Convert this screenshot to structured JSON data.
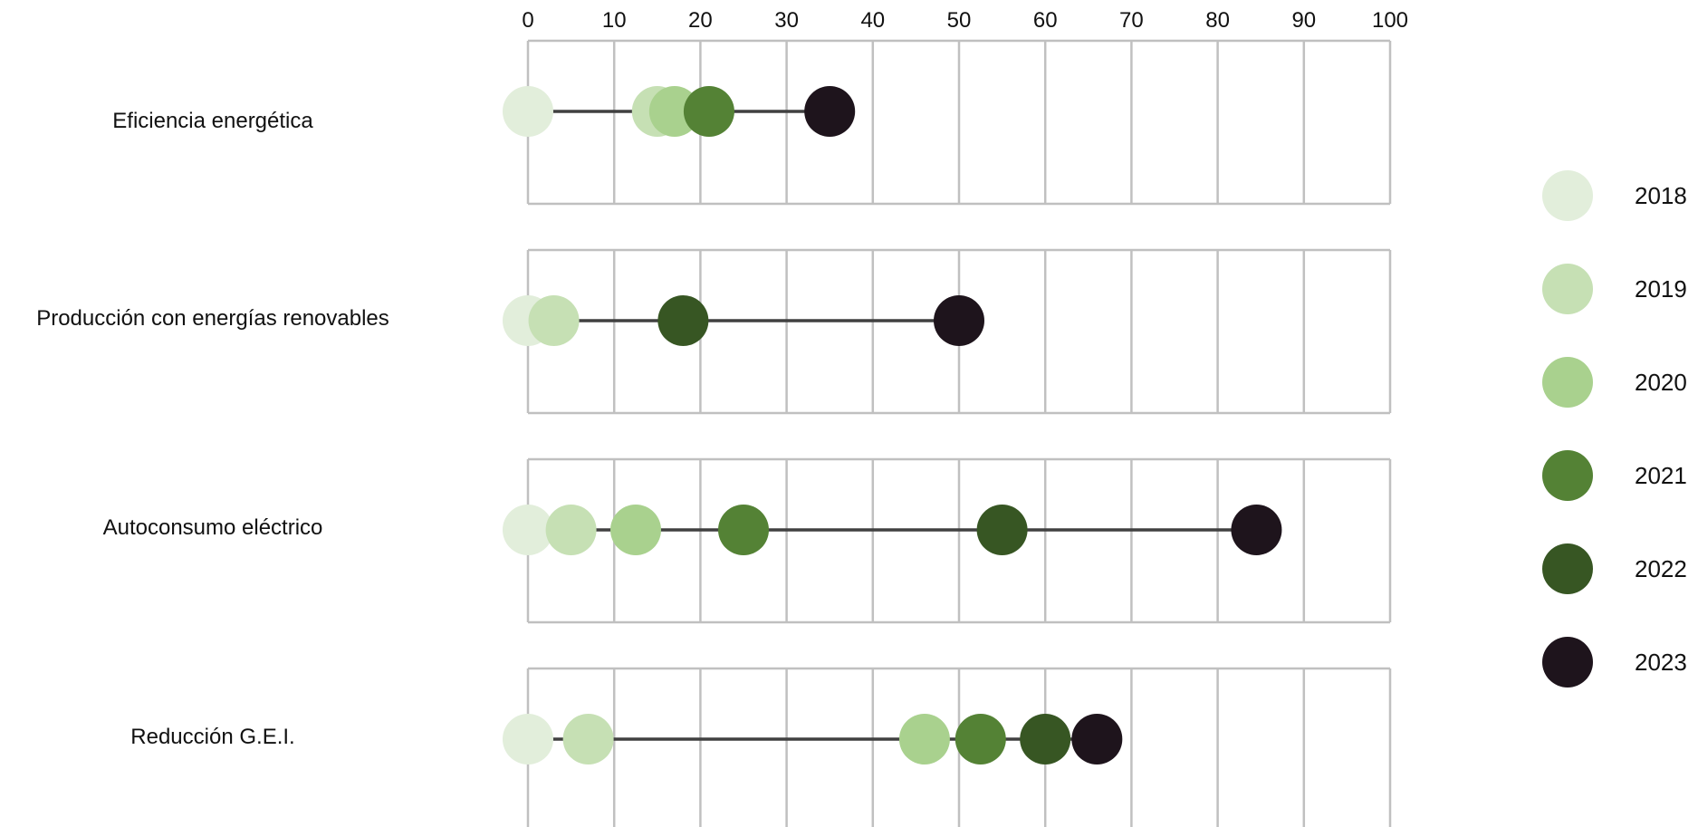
{
  "chart_data": {
    "type": "scatter",
    "subtype": "dot-plot",
    "xlim": [
      0,
      100
    ],
    "x_ticks": [
      0,
      10,
      20,
      30,
      40,
      50,
      60,
      70,
      80,
      90,
      100
    ],
    "x_tick_labels": [
      "0",
      "10",
      "20",
      "30",
      "40",
      "50",
      "60",
      "70",
      "80",
      "90",
      "100"
    ],
    "x_axis_position": "top",
    "grid": true,
    "legend_position": "right",
    "categories": [
      "Eficiencia energética",
      "Producción con energías renovables",
      "Autoconsumo eléctrico",
      "Reducción G.E.I."
    ],
    "series": [
      {
        "name": "2018",
        "color": "#e2eedb",
        "values": [
          0,
          0,
          0,
          0
        ]
      },
      {
        "name": "2019",
        "color": "#c6e0b4",
        "values": [
          15,
          3,
          5,
          7
        ]
      },
      {
        "name": "2020",
        "color": "#a9d18e",
        "values": [
          17,
          null,
          12.5,
          46
        ]
      },
      {
        "name": "2021",
        "color": "#548235",
        "values": [
          21,
          null,
          25,
          52.5
        ]
      },
      {
        "name": "2022",
        "color": "#375623",
        "values": [
          null,
          18,
          55,
          60
        ]
      },
      {
        "name": "2023",
        "color": "#1e141c",
        "values": [
          35,
          50,
          84.5,
          66
        ]
      }
    ],
    "connector_color": "#404040",
    "grid_color": "#c0c0c0"
  }
}
